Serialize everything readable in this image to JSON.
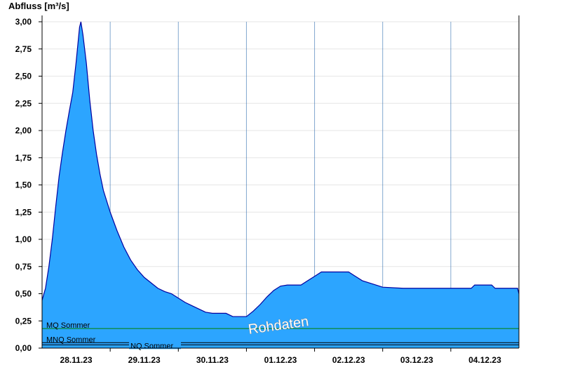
{
  "chart_data": {
    "type": "area",
    "ylabel": "Abfluss [m³/s]",
    "ylim": [
      0,
      3
    ],
    "y_ticks": [
      "0,00",
      "0,25",
      "0,50",
      "0,75",
      "1,00",
      "1,25",
      "1,50",
      "1,75",
      "2,00",
      "2,25",
      "2,50",
      "2,75",
      "3,00"
    ],
    "x_labels": [
      "28.11.23",
      "29.11.23",
      "30.11.23",
      "01.12.23",
      "02.12.23",
      "03.12.23",
      "04.12.23"
    ],
    "xlim_days": [
      0,
      7
    ],
    "grid": true,
    "fill_color": "#2ca5ff",
    "line_color": "#0000a0",
    "watermark": "Rohdaten",
    "reference_lines": [
      {
        "name": "MQ Sommer",
        "value": 0.18,
        "color": "#008000"
      },
      {
        "name": "MNQ Sommer",
        "value": 0.05,
        "color": "#000000"
      },
      {
        "name": "NQ Sommer",
        "value": 0.03,
        "color": "#000000"
      }
    ],
    "series": [
      {
        "values": [
          [
            0.0,
            0.44
          ],
          [
            0.05,
            0.55
          ],
          [
            0.1,
            0.75
          ],
          [
            0.15,
            1.0
          ],
          [
            0.2,
            1.3
          ],
          [
            0.25,
            1.58
          ],
          [
            0.3,
            1.8
          ],
          [
            0.35,
            2.0
          ],
          [
            0.4,
            2.18
          ],
          [
            0.45,
            2.35
          ],
          [
            0.5,
            2.63
          ],
          [
            0.55,
            2.95
          ],
          [
            0.57,
            3.0
          ],
          [
            0.6,
            2.88
          ],
          [
            0.65,
            2.62
          ],
          [
            0.7,
            2.28
          ],
          [
            0.75,
            2.0
          ],
          [
            0.8,
            1.78
          ],
          [
            0.85,
            1.6
          ],
          [
            0.9,
            1.45
          ],
          [
            1.0,
            1.25
          ],
          [
            1.1,
            1.08
          ],
          [
            1.2,
            0.93
          ],
          [
            1.3,
            0.81
          ],
          [
            1.4,
            0.72
          ],
          [
            1.5,
            0.65
          ],
          [
            1.6,
            0.6
          ],
          [
            1.7,
            0.55
          ],
          [
            1.8,
            0.52
          ],
          [
            1.9,
            0.5
          ],
          [
            2.0,
            0.46
          ],
          [
            2.1,
            0.42
          ],
          [
            2.2,
            0.39
          ],
          [
            2.3,
            0.36
          ],
          [
            2.4,
            0.33
          ],
          [
            2.5,
            0.32
          ],
          [
            2.7,
            0.32
          ],
          [
            2.8,
            0.29
          ],
          [
            3.0,
            0.29
          ],
          [
            3.1,
            0.34
          ],
          [
            3.2,
            0.4
          ],
          [
            3.3,
            0.47
          ],
          [
            3.4,
            0.53
          ],
          [
            3.5,
            0.57
          ],
          [
            3.6,
            0.58
          ],
          [
            3.8,
            0.58
          ],
          [
            3.9,
            0.62
          ],
          [
            4.0,
            0.66
          ],
          [
            4.1,
            0.7
          ],
          [
            4.5,
            0.7
          ],
          [
            4.6,
            0.66
          ],
          [
            4.7,
            0.62
          ],
          [
            4.9,
            0.58
          ],
          [
            5.0,
            0.56
          ],
          [
            5.3,
            0.55
          ],
          [
            6.3,
            0.55
          ],
          [
            6.35,
            0.58
          ],
          [
            6.6,
            0.58
          ],
          [
            6.65,
            0.55
          ],
          [
            6.98,
            0.55
          ],
          [
            7.0,
            0.5
          ]
        ]
      }
    ]
  }
}
